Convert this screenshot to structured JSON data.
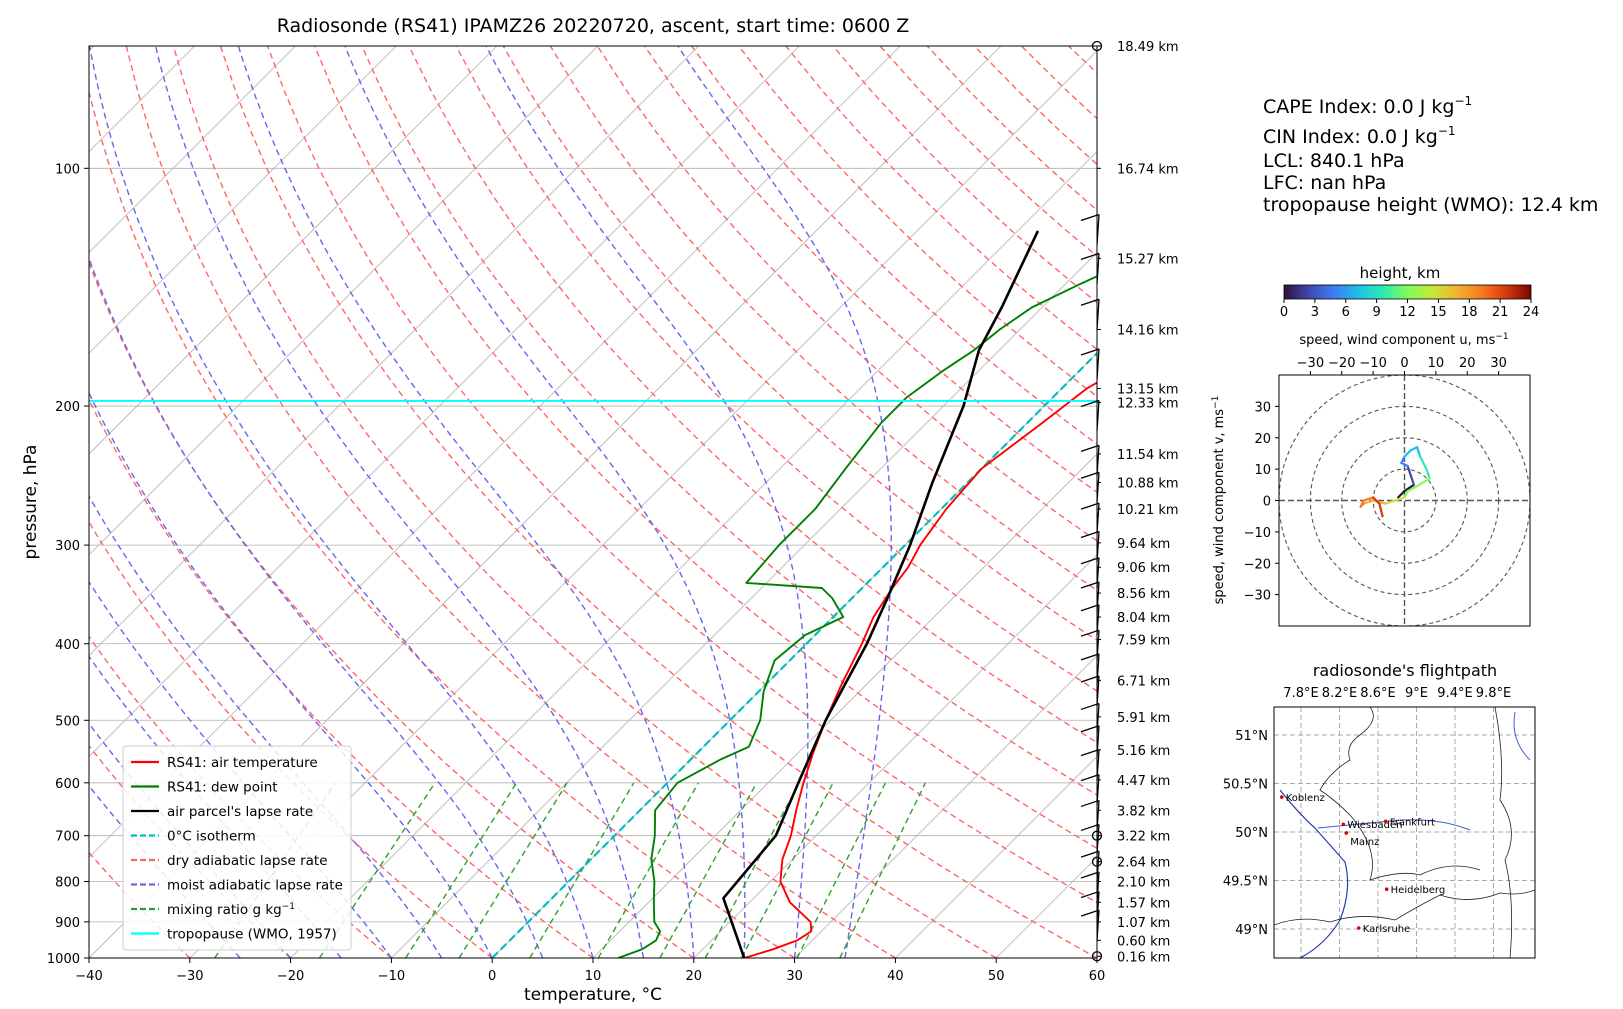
{
  "colors": {
    "air_temperature": "#ff0000",
    "dew_point": "#008000",
    "parcel": "#000000",
    "isotherm0": "#00bfbf",
    "dry_adiabat": "#ff6666",
    "moist_adiabat": "#6666ee",
    "mixing_ratio": "#2ca02c",
    "tropopause": "#00ffff",
    "grid": "#b0b0b0"
  },
  "skewt": {
    "title": "Radiosonde (RS41) IPAMZ26 20220720, ascent, start time: 0600 Z",
    "xlabel": "temperature, °C",
    "ylabel": "pressure, hPa",
    "x_ticks": [
      "−40",
      "−30",
      "−20",
      "−10",
      "0",
      "10",
      "20",
      "30",
      "40",
      "50",
      "60"
    ],
    "y_ticks": [
      "100",
      "200",
      "300",
      "400",
      "500",
      "600",
      "700",
      "800",
      "900",
      "1000"
    ],
    "legend": [
      {
        "label": "RS41: air temperature",
        "style": "solid",
        "color_key": "air_temperature"
      },
      {
        "label": "RS41: dew point",
        "style": "solid",
        "color_key": "dew_point"
      },
      {
        "label": "air parcel's lapse rate",
        "style": "solid",
        "color_key": "parcel"
      },
      {
        "label": "0°C isotherm",
        "style": "dashed",
        "color_key": "isotherm0"
      },
      {
        "label": "dry adiabatic lapse rate",
        "style": "dashed",
        "color_key": "dry_adiabat"
      },
      {
        "label": "moist adiabatic lapse rate",
        "style": "dashed",
        "color_key": "moist_adiabat"
      },
      {
        "label": "mixing ratio g kg",
        "sup": "−1",
        "style": "dashed",
        "color_key": "mixing_ratio"
      },
      {
        "label": "tropopause (WMO, 1957)",
        "style": "solid",
        "color_key": "tropopause"
      }
    ],
    "height_labels": [
      {
        "p": 70,
        "label": "18.49 km"
      },
      {
        "p": 100,
        "label": "16.74 km"
      },
      {
        "p": 130,
        "label": "15.27 km"
      },
      {
        "p": 160,
        "label": "14.16 km"
      },
      {
        "p": 190,
        "label": "13.15 km"
      },
      {
        "p": 198,
        "label": "12.33 km"
      },
      {
        "p": 230,
        "label": "11.54 km"
      },
      {
        "p": 250,
        "label": "10.88 km"
      },
      {
        "p": 270,
        "label": "10.21 km"
      },
      {
        "p": 298,
        "label": "9.64 km"
      },
      {
        "p": 320,
        "label": "9.06 km"
      },
      {
        "p": 345,
        "label": "8.56 km"
      },
      {
        "p": 370,
        "label": "8.04 km"
      },
      {
        "p": 395,
        "label": "7.59 km"
      },
      {
        "p": 445,
        "label": "6.71 km"
      },
      {
        "p": 495,
        "label": "5.91 km"
      },
      {
        "p": 545,
        "label": "5.16 km"
      },
      {
        "p": 595,
        "label": "4.47 km"
      },
      {
        "p": 650,
        "label": "3.82 km"
      },
      {
        "p": 700,
        "label": "3.22 km"
      },
      {
        "p": 755,
        "label": "2.64 km"
      },
      {
        "p": 800,
        "label": "2.10 km"
      },
      {
        "p": 850,
        "label": "1.57 km"
      },
      {
        "p": 900,
        "label": "1.07 km"
      },
      {
        "p": 950,
        "label": "0.60 km"
      },
      {
        "p": 995,
        "label": "0.16 km"
      }
    ]
  },
  "info": {
    "cape": "CAPE Index: 0.0 J kg",
    "cape_sup": "−1",
    "cin": "CIN Index: 0.0 J kg",
    "cin_sup": "−1",
    "lcl": "LCL: 840.1 hPa",
    "lfc": "LFC: nan hPa",
    "tropopause": "tropopause height (WMO): 12.4 km"
  },
  "colorbar": {
    "title": "height, km",
    "ticks": [
      "0",
      "3",
      "6",
      "9",
      "12",
      "15",
      "18",
      "21",
      "24"
    ]
  },
  "hodograph": {
    "xlabel": "speed, wind component u, ms",
    "xlabel_sup": "−1",
    "ylabel": "speed, wind component v, ms",
    "ylabel_sup": "−1",
    "x_ticks": [
      "−30",
      "−20",
      "−10",
      "0",
      "10",
      "20",
      "30"
    ],
    "y_ticks": [
      "30",
      "20",
      "10",
      "0",
      "−10",
      "−20",
      "−30"
    ]
  },
  "map": {
    "title": "radiosonde's flightpath",
    "lon_ticks": [
      "7.8°E",
      "8.2°E",
      "8.6°E",
      "9°E",
      "9.4°E",
      "9.8°E"
    ],
    "lat_ticks": [
      "51°N",
      "50.5°N",
      "50°N",
      "49.5°N",
      "49°N"
    ],
    "cities": [
      {
        "name": "Koblenz",
        "lon": 7.6,
        "lat": 50.36
      },
      {
        "name": "Wiesbaden",
        "lon": 8.24,
        "lat": 50.08
      },
      {
        "name": "Frankfurt",
        "lon": 8.68,
        "lat": 50.11
      },
      {
        "name": "Mainz",
        "lon": 8.27,
        "lat": 49.99
      },
      {
        "name": "Heidelberg",
        "lon": 8.69,
        "lat": 49.41
      },
      {
        "name": "Karlsruhe",
        "lon": 8.4,
        "lat": 49.01
      }
    ]
  },
  "chart_data": [
    {
      "type": "line",
      "title": "Radiosonde (RS41) IPAMZ26 20220720, ascent, start time: 0600 Z",
      "xlabel": "temperature, °C",
      "ylabel": "pressure, hPa",
      "xlim": [
        -40,
        60
      ],
      "ylim": [
        1000,
        70
      ],
      "y_scale": "log",
      "legend_position": "lower-left",
      "series": [
        {
          "name": "RS41: air temperature",
          "x": [
            25,
            27,
            28.5,
            29,
            28,
            24,
            21,
            19,
            17.5,
            15.5,
            13.5,
            11.5,
            9.5,
            7.5,
            5.5,
            4,
            3,
            2.5,
            1.5,
            0.5,
            0,
            1.5,
            2.5,
            4.5,
            6,
            7,
            8,
            9.5,
            11.5,
            13,
            16,
            17.5,
            22,
            25,
            30,
            33,
            35
          ],
          "y": [
            1000,
            975,
            950,
            925,
            900,
            850,
            800,
            750,
            700,
            650,
            600,
            550,
            500,
            450,
            400,
            370,
            340,
            320,
            300,
            270,
            240,
            210,
            190,
            175,
            160,
            150,
            140,
            130,
            120,
            110,
            100,
            95,
            85,
            80,
            75,
            72,
            70
          ]
        },
        {
          "name": "RS41: dew point",
          "x": [
            12.5,
            14,
            14.5,
            14,
            12.5,
            10.5,
            8.5,
            6,
            4,
            1.5,
            1,
            3,
            4.5,
            3,
            0.5,
            -1.5,
            -1,
            1,
            -2,
            -4,
            -12,
            -12.5,
            -12.5,
            -13.5,
            -14.5,
            -14.5,
            -13.5,
            -12.5,
            -12,
            -11,
            -8.5,
            -5.5,
            -3.5,
            -1.5,
            1.5,
            5,
            8.5,
            10,
            12.5,
            15.5
          ],
          "y": [
            1000,
            975,
            950,
            925,
            900,
            850,
            800,
            750,
            700,
            650,
            600,
            560,
            540,
            500,
            460,
            420,
            390,
            370,
            350,
            340,
            335,
            300,
            270,
            240,
            210,
            195,
            180,
            170,
            160,
            150,
            140,
            130,
            120,
            110,
            100,
            95,
            90,
            85,
            80,
            75
          ]
        },
        {
          "name": "air parcel's lapse rate",
          "x": [
            25,
            17,
            16,
            13,
            9.5,
            6,
            3.5,
            0.5,
            -3.5,
            -8,
            -12,
            -14,
            -18
          ],
          "y": [
            1000,
            840,
            700,
            600,
            500,
            400,
            350,
            300,
            250,
            200,
            170,
            150,
            120
          ]
        },
        {
          "name": "tropopause (WMO, 1957)",
          "x": [
            -40,
            60
          ],
          "y": [
            197,
            197
          ]
        }
      ]
    },
    {
      "type": "scatter",
      "title": "",
      "xlabel": "speed, wind component u, ms−1",
      "ylabel": "speed, wind component v, ms−1",
      "xlim": [
        -40,
        40
      ],
      "ylim": [
        -40,
        40
      ],
      "colorbar_title": "height, km",
      "colorbar_range": [
        0,
        24
      ],
      "series": [
        {
          "name": "",
          "x": [
            -2,
            0,
            3,
            2,
            1,
            -1,
            0,
            2,
            4,
            5,
            7,
            8,
            3,
            1,
            0,
            -3,
            -6,
            -10,
            -13,
            -14,
            -13,
            -10,
            -8,
            -7
          ],
          "y": [
            1,
            3,
            5,
            8,
            11,
            12,
            14,
            16,
            17,
            14,
            10,
            7,
            4,
            3,
            1,
            0,
            -1,
            0,
            -1,
            -2,
            0,
            1,
            -1,
            -5
          ],
          "height_km": [
            0,
            1,
            2,
            3,
            4,
            5,
            6,
            7,
            8,
            9,
            10,
            11,
            12,
            13,
            14,
            15,
            16,
            17,
            18,
            19,
            20,
            21,
            22,
            24
          ]
        }
      ]
    }
  ]
}
